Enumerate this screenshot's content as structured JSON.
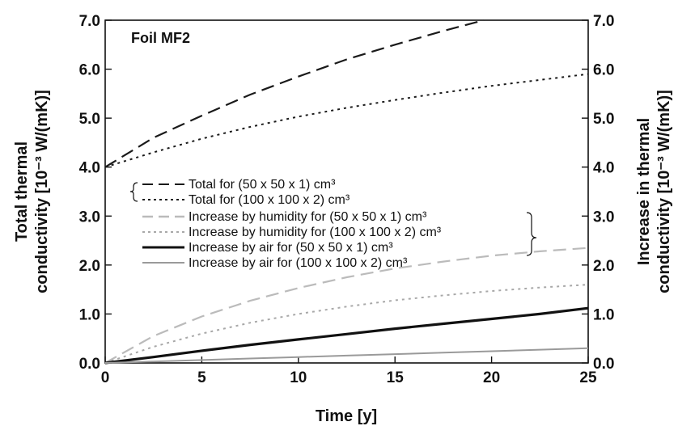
{
  "chart_data": {
    "type": "line",
    "annotation": "Foil MF2",
    "xlabel": "Time [y]",
    "ylabel_left": [
      "Total thermal",
      "conductivity [10⁻³ W/(mK)]"
    ],
    "ylabel_right": [
      "Increase in thermal",
      "conductivity [10⁻³ W/(mK)]"
    ],
    "xlim": [
      0,
      25
    ],
    "ylim": [
      0,
      7
    ],
    "x_ticks": [
      "0",
      "5",
      "10",
      "15",
      "20",
      "25"
    ],
    "y_ticks_left": [
      "0.0",
      "1.0",
      "2.0",
      "3.0",
      "4.0",
      "5.0",
      "6.0",
      "7.0"
    ],
    "y_ticks_right": [
      "0.0",
      "1.0",
      "2.0",
      "3.0",
      "4.0",
      "5.0",
      "6.0",
      "7.0"
    ],
    "series": [
      {
        "name": "Total for (50 x 50  x 1) cm³",
        "color": "#1a1a1a",
        "dash": "long",
        "x": [
          0,
          2.5,
          5,
          7.5,
          10,
          12.5,
          15,
          17.5,
          19.6
        ],
        "y": [
          4.0,
          4.6,
          5.05,
          5.48,
          5.85,
          6.2,
          6.5,
          6.78,
          7.0
        ]
      },
      {
        "name": "Total for (100 x  100 x 2) cm³",
        "color": "#1a1a1a",
        "dash": "short",
        "x": [
          0,
          2.5,
          5,
          7.5,
          10,
          12.5,
          15,
          17.5,
          20,
          22.5,
          25
        ],
        "y": [
          4.0,
          4.3,
          4.58,
          4.82,
          5.03,
          5.21,
          5.37,
          5.52,
          5.66,
          5.78,
          5.9
        ]
      },
      {
        "name": "Increase by humidity for (50 x 50 x 1) cm³",
        "color": "#bbbbbb",
        "dash": "long",
        "x": [
          0,
          2.5,
          5,
          7.5,
          10,
          12.5,
          15,
          17.5,
          20,
          22.5,
          25
        ],
        "y": [
          0.0,
          0.55,
          0.95,
          1.27,
          1.53,
          1.75,
          1.93,
          2.07,
          2.19,
          2.28,
          2.35
        ]
      },
      {
        "name": "Increase by humidity for (100 x 100 x 2) cm³",
        "color": "#a8a8a8",
        "dash": "short",
        "x": [
          0,
          2.5,
          5,
          7.5,
          10,
          12.5,
          15,
          17.5,
          20,
          22.5,
          25
        ],
        "y": [
          0.0,
          0.33,
          0.6,
          0.82,
          1.0,
          1.15,
          1.28,
          1.38,
          1.47,
          1.54,
          1.6
        ]
      },
      {
        "name": "Increase by air for (50 x 50 x 1) cm³",
        "color": "#111111",
        "dash": "solid-thick",
        "x": [
          0,
          2.5,
          5,
          7.5,
          10,
          12.5,
          15,
          17.5,
          20,
          22.5,
          25
        ],
        "y": [
          0.0,
          0.12,
          0.25,
          0.37,
          0.48,
          0.59,
          0.7,
          0.8,
          0.9,
          1.0,
          1.12
        ]
      },
      {
        "name": "Increase by air for (100 x 100 x 2) cm³",
        "color": "#9a9a9a",
        "dash": "solid",
        "x": [
          0,
          2.5,
          5,
          7.5,
          10,
          12.5,
          15,
          17.5,
          20,
          22.5,
          25
        ],
        "y": [
          0.0,
          0.03,
          0.06,
          0.09,
          0.12,
          0.15,
          0.18,
          0.21,
          0.24,
          0.27,
          0.3
        ]
      }
    ]
  }
}
